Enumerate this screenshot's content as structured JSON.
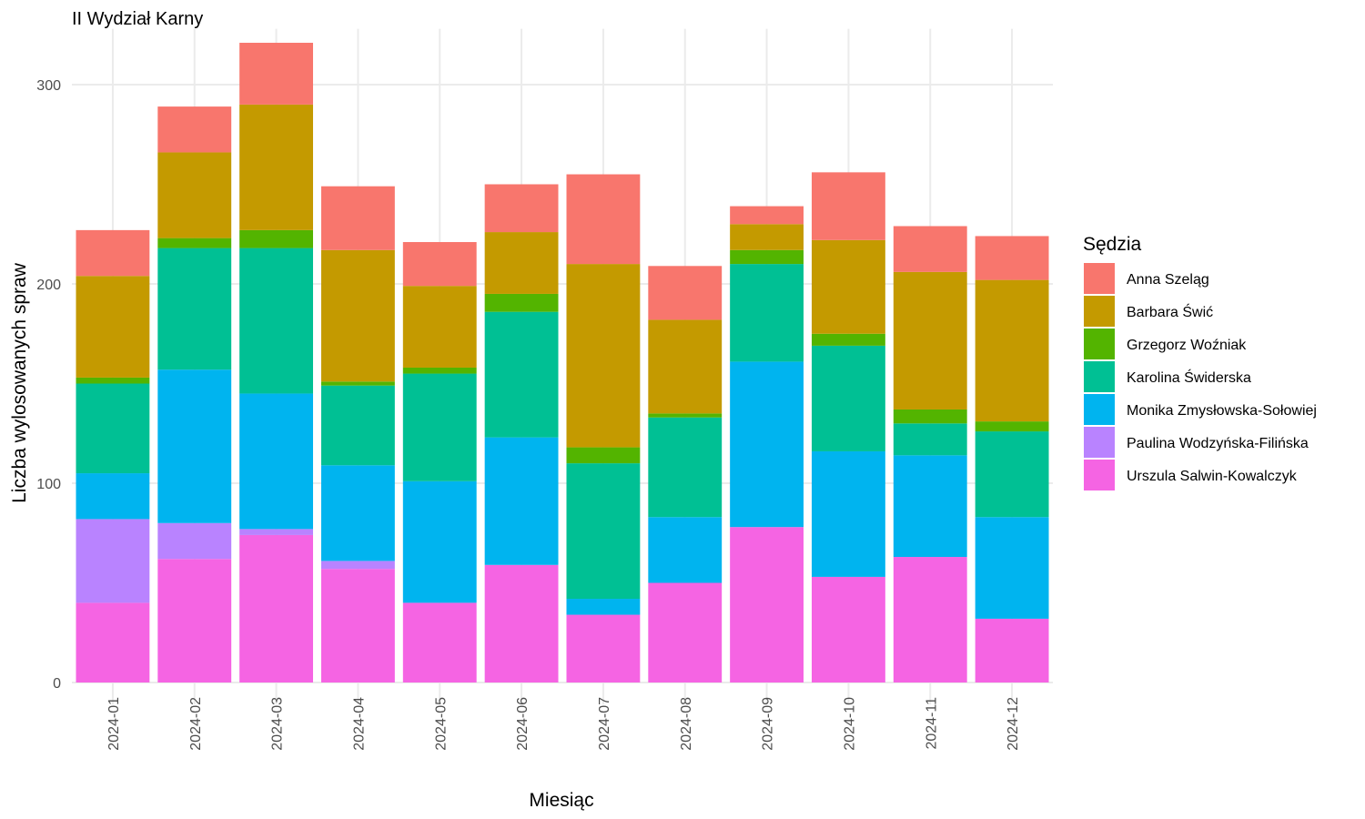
{
  "chart_data": {
    "type": "bar",
    "stacked": true,
    "title": "II Wydział Karny",
    "xlabel": "Miesiąc",
    "ylabel": "Liczba wylosowanych spraw",
    "ylim": [
      -11,
      328
    ],
    "yticks": [
      0,
      100,
      200,
      300
    ],
    "grid": true,
    "legend_title": "Sędzia",
    "legend_position": "right",
    "categories": [
      "2024-01",
      "2024-02",
      "2024-03",
      "2024-04",
      "2024-05",
      "2024-06",
      "2024-07",
      "2024-08",
      "2024-09",
      "2024-10",
      "2024-11",
      "2024-12"
    ],
    "series": [
      {
        "name": "Urszula Salwin-Kowalczyk",
        "color": "#F564E3",
        "values": [
          40,
          62,
          74,
          57,
          40,
          59,
          34,
          50,
          78,
          53,
          63,
          32
        ]
      },
      {
        "name": "Paulina Wodzyńska-Filińska",
        "color": "#B983FF",
        "values": [
          42,
          18,
          3,
          4,
          0,
          0,
          0,
          0,
          0,
          0,
          0,
          0
        ]
      },
      {
        "name": "Monika Zmysłowska-Sołowiej",
        "color": "#00B4EF",
        "values": [
          23,
          77,
          68,
          48,
          61,
          64,
          8,
          33,
          83,
          63,
          51,
          51
        ]
      },
      {
        "name": "Karolina Świderska",
        "color": "#00C094",
        "values": [
          45,
          61,
          73,
          40,
          54,
          63,
          68,
          50,
          49,
          53,
          16,
          43
        ]
      },
      {
        "name": "Grzegorz Woźniak",
        "color": "#53B400",
        "values": [
          3,
          5,
          9,
          2,
          3,
          9,
          8,
          2,
          7,
          6,
          7,
          5
        ]
      },
      {
        "name": "Barbara Świć",
        "color": "#C49A00",
        "values": [
          51,
          43,
          63,
          66,
          41,
          31,
          92,
          47,
          13,
          47,
          69,
          71
        ]
      },
      {
        "name": "Anna Szeląg",
        "color": "#F8766D",
        "values": [
          23,
          23,
          31,
          32,
          22,
          24,
          45,
          27,
          9,
          34,
          23,
          22
        ]
      }
    ],
    "legend_order": [
      "Anna Szeląg",
      "Barbara Świć",
      "Grzegorz Woźniak",
      "Karolina Świderska",
      "Monika Zmysłowska-Sołowiej",
      "Paulina Wodzyńska-Filińska",
      "Urszula Salwin-Kowalczyk"
    ]
  }
}
